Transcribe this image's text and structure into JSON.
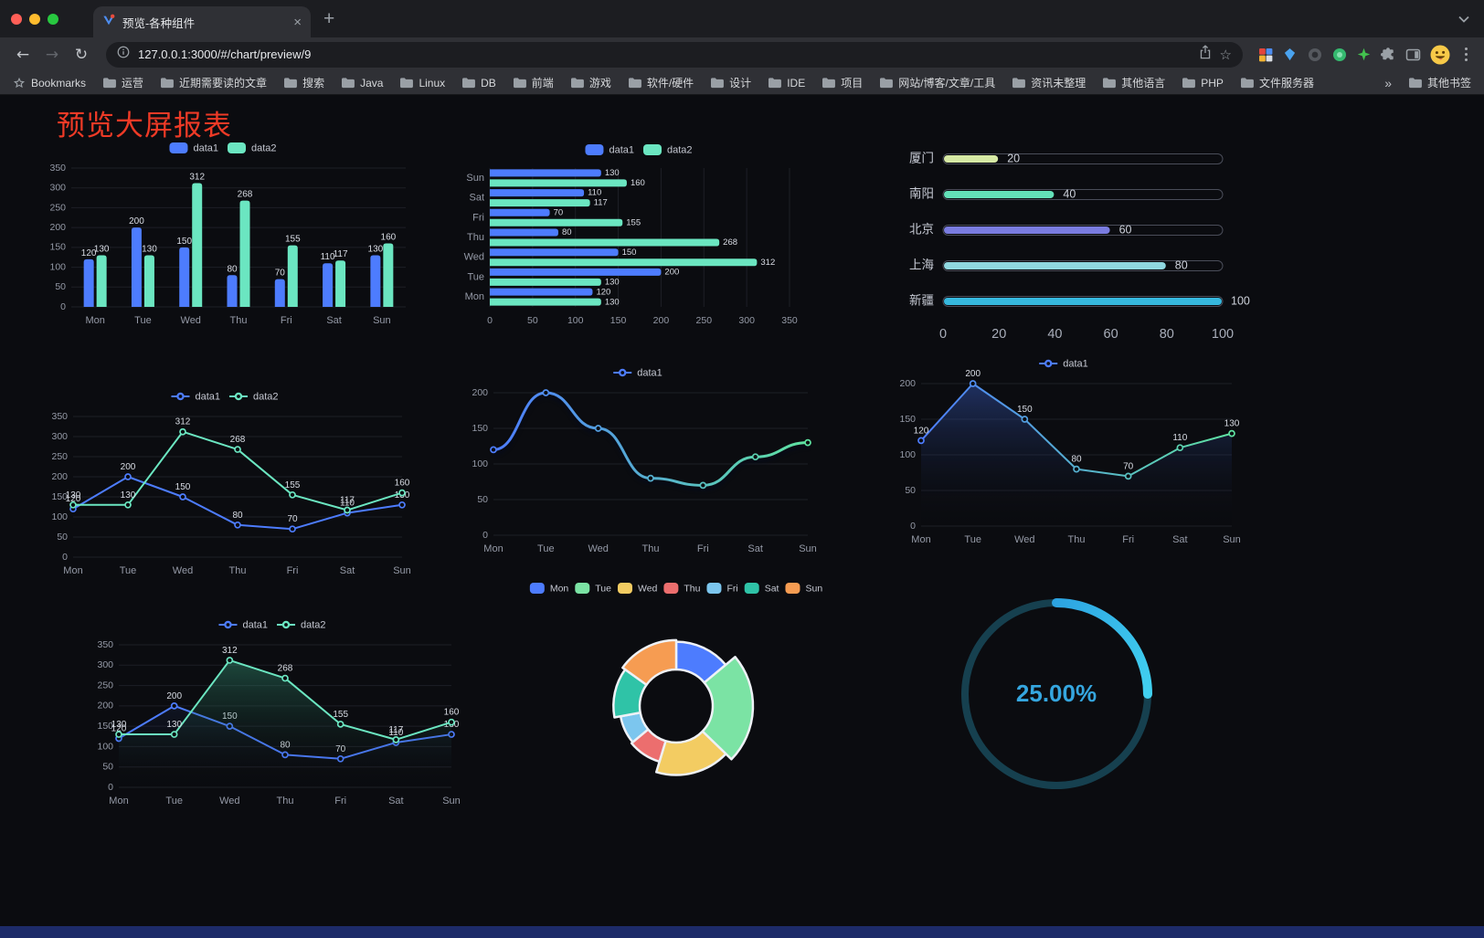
{
  "browser": {
    "tab_title": "预览-各种组件",
    "url": "127.0.0.1:3000/#/chart/preview/9",
    "new_tab_glyph": "+",
    "close_tab_glyph": "×",
    "icons": {
      "back": "←",
      "forward": "→",
      "reload": "↻",
      "star": "☆"
    },
    "bookmarks": [
      "Bookmarks",
      "运营",
      "近期需要读的文章",
      "搜索",
      "Java",
      "Linux",
      "DB",
      "前端",
      "游戏",
      "软件/硬件",
      "设计",
      "IDE",
      "项目",
      "网站/博客/文章/工具",
      "资讯未整理",
      "其他语言",
      "PHP",
      "文件服务器"
    ],
    "bookmarks_overflow": "»",
    "other_bookmarks": "其他书签"
  },
  "page": {
    "title": "预览大屏报表",
    "title_color": "#ee3a26",
    "background": "#0b0c10"
  },
  "chart_data": [
    {
      "id": "bar-grouped",
      "type": "bar",
      "categories": [
        "Mon",
        "Tue",
        "Wed",
        "Thu",
        "Fri",
        "Sat",
        "Sun"
      ],
      "series": [
        {
          "name": "data1",
          "color": "#4D7CFE",
          "values": [
            120,
            200,
            150,
            80,
            70,
            110,
            130
          ]
        },
        {
          "name": "data2",
          "color": "#6BE6C1",
          "values": [
            130,
            130,
            312,
            268,
            155,
            117,
            160
          ]
        }
      ],
      "ylim": [
        0,
        350
      ],
      "y_interval": 50,
      "legend_position": "top",
      "grid": true
    },
    {
      "id": "bar-horizontal",
      "type": "bar",
      "orientation": "horizontal",
      "categories": [
        "Mon",
        "Tue",
        "Wed",
        "Thu",
        "Fri",
        "Sat",
        "Sun"
      ],
      "series": [
        {
          "name": "data1",
          "color": "#4D7CFE",
          "values": [
            120,
            200,
            150,
            80,
            70,
            110,
            130
          ]
        },
        {
          "name": "data2",
          "color": "#6BE6C1",
          "values": [
            130,
            130,
            312,
            268,
            155,
            117,
            160
          ]
        }
      ],
      "xlim": [
        0,
        350
      ],
      "x_interval": 50,
      "legend_position": "top",
      "grid": true
    },
    {
      "id": "capsule",
      "type": "bar",
      "orientation": "horizontal",
      "variant": "capsule",
      "categories": [
        "厦门",
        "南阳",
        "北京",
        "上海",
        "新疆"
      ],
      "values": [
        20,
        40,
        60,
        80,
        100
      ],
      "colors": [
        "#D6E9A4",
        "#63E0B8",
        "#7A7CE0",
        "#8FD8E0",
        "#36B8DE"
      ],
      "xlim": [
        0,
        100
      ],
      "xticks": [
        0,
        20,
        40,
        60,
        80,
        100
      ]
    },
    {
      "id": "line-double",
      "type": "line",
      "categories": [
        "Mon",
        "Tue",
        "Wed",
        "Thu",
        "Fri",
        "Sat",
        "Sun"
      ],
      "series": [
        {
          "name": "data1",
          "color": "#4D7CFE",
          "values": [
            120,
            200,
            150,
            80,
            70,
            110,
            130
          ]
        },
        {
          "name": "data2",
          "color": "#6BE6C1",
          "values": [
            130,
            130,
            312,
            268,
            155,
            117,
            160
          ]
        }
      ],
      "ylim": [
        0,
        350
      ],
      "y_interval": 50,
      "legend_position": "top",
      "markers": true,
      "labels": true
    },
    {
      "id": "line-smooth",
      "type": "line",
      "smooth": true,
      "categories": [
        "Mon",
        "Tue",
        "Wed",
        "Thu",
        "Fri",
        "Sat",
        "Sun"
      ],
      "series": [
        {
          "name": "data1",
          "gradient": [
            "#4D7CFE",
            "#5FE3A1"
          ],
          "values": [
            120,
            200,
            150,
            80,
            70,
            110,
            130
          ]
        }
      ],
      "ylim": [
        0,
        200
      ],
      "y_interval": 50,
      "legend_position": "top",
      "markers": true,
      "labels": false
    },
    {
      "id": "line-area-single",
      "type": "area",
      "categories": [
        "Mon",
        "Tue",
        "Wed",
        "Thu",
        "Fri",
        "Sat",
        "Sun"
      ],
      "series": [
        {
          "name": "data1",
          "gradient": [
            "#4D7CFE",
            "#5FE3A1"
          ],
          "area": "rgba(64,105,220,0.40)",
          "values": [
            120,
            200,
            150,
            80,
            70,
            110,
            130
          ]
        }
      ],
      "ylim": [
        0,
        200
      ],
      "y_interval": 50,
      "legend_position": "top",
      "markers": true,
      "labels": true
    },
    {
      "id": "line-area-double",
      "type": "area",
      "categories": [
        "Mon",
        "Tue",
        "Wed",
        "Thu",
        "Fri",
        "Sat",
        "Sun"
      ],
      "series": [
        {
          "name": "data1",
          "color": "#4D7CFE",
          "area": "rgba(64,105,220,0.28)",
          "values": [
            120,
            200,
            150,
            80,
            70,
            110,
            130
          ]
        },
        {
          "name": "data2",
          "color": "#6BE6C1",
          "area": "rgba(70,205,160,0.40)",
          "values": [
            130,
            130,
            312,
            268,
            155,
            117,
            160
          ]
        }
      ],
      "ylim": [
        0,
        350
      ],
      "y_interval": 50,
      "legend_position": "top",
      "markers": true,
      "labels": true
    },
    {
      "id": "pie-rose",
      "type": "pie",
      "variant": "rose-doughnut",
      "categories": [
        "Mon",
        "Tue",
        "Wed",
        "Thu",
        "Fri",
        "Sat",
        "Sun"
      ],
      "values": [
        120,
        200,
        150,
        80,
        70,
        110,
        130
      ],
      "colors": [
        "#4D7CFE",
        "#7BE3A4",
        "#F3CC62",
        "#EC6E6E",
        "#7CC6EE",
        "#2FC3A7",
        "#F69C52"
      ],
      "legend_position": "top"
    },
    {
      "id": "gauge",
      "type": "gauge",
      "value": 25,
      "label": "25.00%",
      "color": "#2FB0EA",
      "track_color": "#16404F",
      "text_color": "#35A6DF"
    }
  ]
}
